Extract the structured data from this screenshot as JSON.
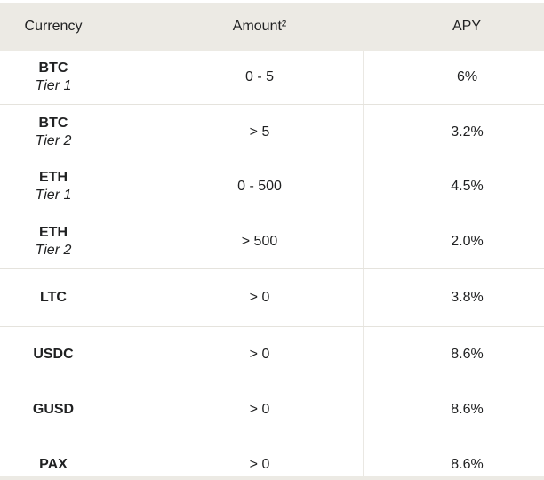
{
  "colors": {
    "header_bg": "#ECEAE4",
    "row_border": "#E5E3DD",
    "divider": "#EAE8E3",
    "text": "#202122",
    "page_bg": "#FFFFFF"
  },
  "table": {
    "columns": [
      {
        "label": "Currency"
      },
      {
        "label": "Amount²"
      },
      {
        "label": "APY"
      }
    ],
    "rows": [
      {
        "currency": "BTC",
        "tier": "Tier 1",
        "amount": "0 - 5",
        "apy": "6%"
      },
      {
        "currency": "BTC",
        "tier": "Tier 2",
        "amount": "> 5",
        "apy": "3.2%"
      },
      {
        "currency": "ETH",
        "tier": "Tier 1",
        "amount": "0 - 500",
        "apy": "4.5%"
      },
      {
        "currency": "ETH",
        "tier": "Tier 2",
        "amount": "> 500",
        "apy": "2.0%"
      },
      {
        "currency": "LTC",
        "tier": "",
        "amount": "> 0",
        "apy": "3.8%"
      },
      {
        "currency": "USDC",
        "tier": "",
        "amount": "> 0",
        "apy": "8.6%"
      },
      {
        "currency": "GUSD",
        "tier": "",
        "amount": "> 0",
        "apy": "8.6%"
      },
      {
        "currency": "PAX",
        "tier": "",
        "amount": "> 0",
        "apy": "8.6%"
      }
    ]
  },
  "chart_data": {
    "type": "table",
    "title": "",
    "columns": [
      "Currency",
      "Amount²",
      "APY"
    ],
    "rows": [
      [
        "BTC Tier 1",
        "0 - 5",
        "6%"
      ],
      [
        "BTC Tier 2",
        "> 5",
        "3.2%"
      ],
      [
        "ETH Tier 1",
        "0 - 500",
        "4.5%"
      ],
      [
        "ETH Tier 2",
        "> 500",
        "2.0%"
      ],
      [
        "LTC",
        "> 0",
        "3.8%"
      ],
      [
        "USDC",
        "> 0",
        "8.6%"
      ],
      [
        "GUSD",
        "> 0",
        "8.6%"
      ],
      [
        "PAX",
        "> 0",
        "8.6%"
      ]
    ],
    "apy_values_percent": [
      6,
      3.2,
      4.5,
      2.0,
      3.8,
      8.6,
      8.6,
      8.6
    ],
    "layout_hints": {
      "header_background": "#ECEAE4",
      "group_borders_after_rows": [
        0,
        3,
        4
      ],
      "vertical_divider_before_column": "APY",
      "bottom_edge_next_section_visible": true
    }
  }
}
